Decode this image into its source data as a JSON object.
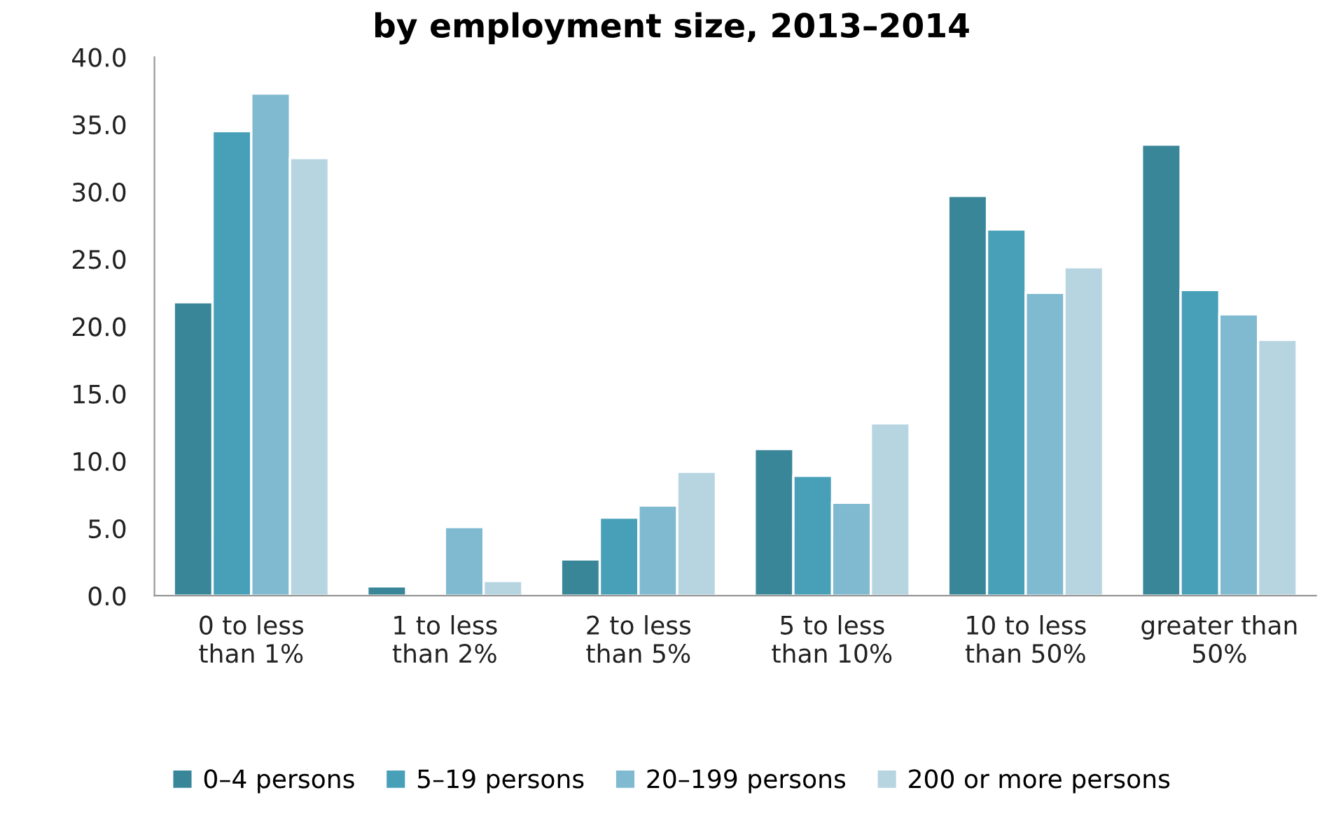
{
  "chart_data": {
    "type": "bar",
    "title": "by employment size, 2013–2014",
    "categories": [
      "0 to less\nthan 1%",
      "1 to less\nthan 2%",
      "2 to less\nthan 5%",
      "5 to less\nthan 10%",
      "10 to less\nthan 50%",
      "greater than\n50%"
    ],
    "series": [
      {
        "name": "0–4 persons",
        "color": "#3a8699",
        "values": [
          21.8,
          0.7,
          2.7,
          10.9,
          29.7,
          33.5
        ]
      },
      {
        "name": "5–19 persons",
        "color": "#48a0b8",
        "values": [
          34.5,
          null,
          5.8,
          8.9,
          27.2,
          22.7
        ]
      },
      {
        "name": "20–199 persons",
        "color": "#7fbad0",
        "values": [
          37.3,
          5.1,
          6.7,
          6.9,
          22.5,
          20.9
        ]
      },
      {
        "name": "200 or more persons",
        "color": "#b7d5e0",
        "values": [
          32.5,
          1.1,
          9.2,
          12.8,
          24.4,
          19.0
        ]
      }
    ],
    "ylim": [
      0,
      40
    ],
    "yticks": [
      {
        "value": 0,
        "label": "0.0"
      },
      {
        "value": 5,
        "label": "5.0"
      },
      {
        "value": 10,
        "label": "10.0"
      },
      {
        "value": 15,
        "label": "15.0"
      },
      {
        "value": 20,
        "label": "20.0"
      },
      {
        "value": 25,
        "label": "25.0"
      },
      {
        "value": 30,
        "label": "30.0"
      },
      {
        "value": 35,
        "label": "35.0"
      },
      {
        "value": 40,
        "label": "40.0"
      }
    ],
    "grid": false,
    "legend": "bottom"
  }
}
